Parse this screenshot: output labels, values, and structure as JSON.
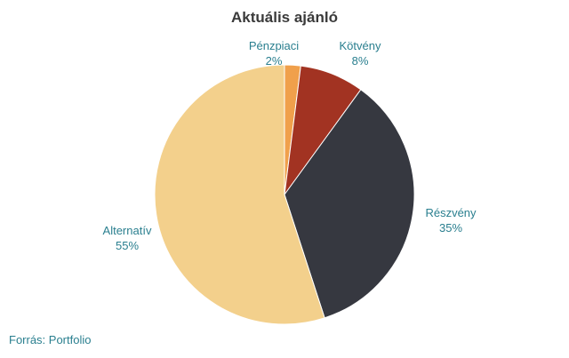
{
  "chart_data": {
    "type": "pie",
    "title": "Aktuális ajánló",
    "slices": [
      {
        "label": "Pénzpiaci",
        "value": 2,
        "value_label": "2%",
        "color": "#f0a04b"
      },
      {
        "label": "Kötvény",
        "value": 8,
        "value_label": "8%",
        "color": "#a23322"
      },
      {
        "label": "Részvény",
        "value": 35,
        "value_label": "35%",
        "color": "#363840"
      },
      {
        "label": "Alternatív",
        "value": 55,
        "value_label": "55%",
        "color": "#f3d08c"
      }
    ],
    "start_angle_deg": 0,
    "direction": "clockwise",
    "label_color": "#2a7f8f",
    "legend": "none"
  },
  "source": "Forrás: Portfolio"
}
